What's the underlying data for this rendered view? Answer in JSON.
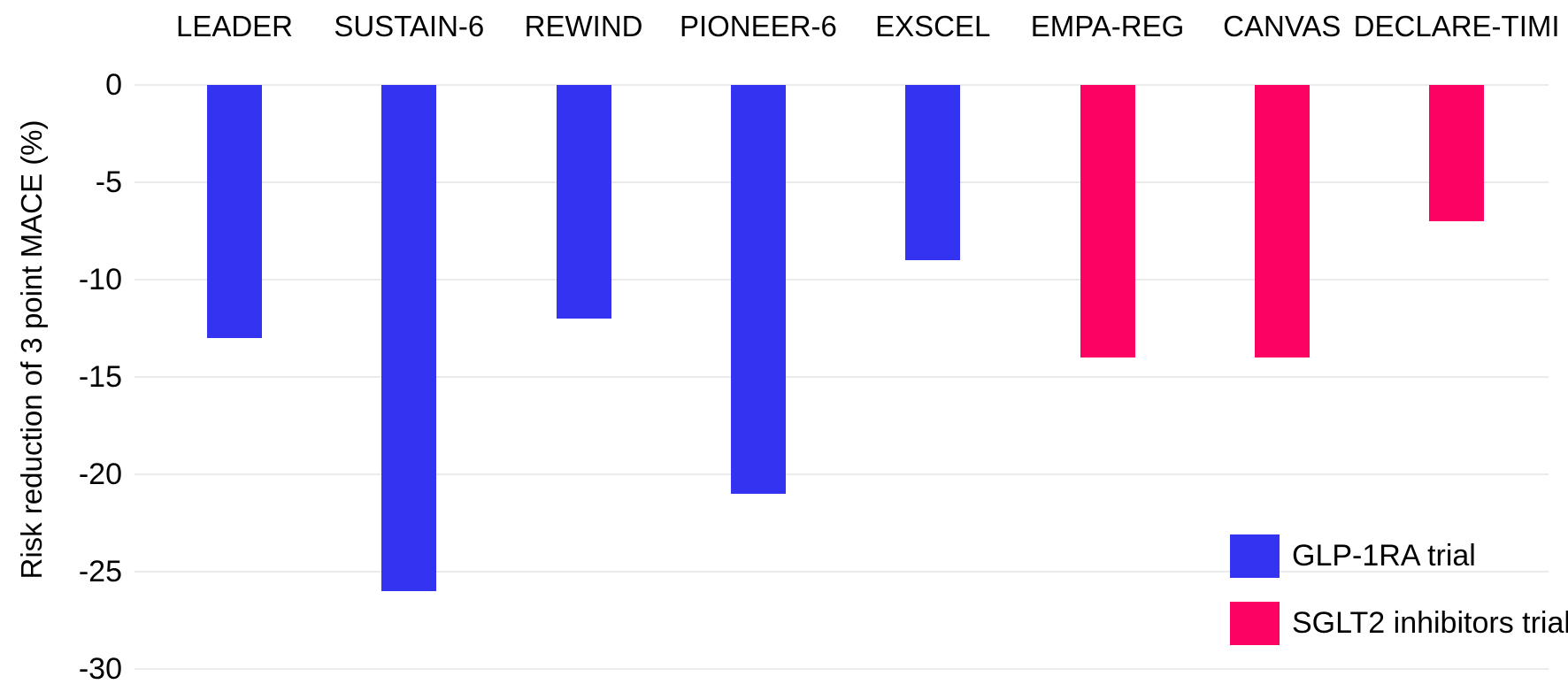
{
  "chart_data": {
    "type": "bar",
    "title": "",
    "categories": [
      "LEADER",
      "SUSTAIN-6",
      "REWIND",
      "PIONEER-6",
      "EXSCEL",
      "EMPA-REG",
      "CANVAS",
      "DECLARE-TIMI"
    ],
    "series": [
      {
        "name": "GLP-1RA trial",
        "color": "#3533F2",
        "values": [
          -13,
          -26,
          -12,
          -21,
          -9,
          null,
          null,
          null
        ]
      },
      {
        "name": "SGLT2 inhibitors trial",
        "color": "#FB0263",
        "values": [
          null,
          null,
          null,
          null,
          null,
          -14,
          -14,
          -7
        ]
      }
    ],
    "xlabel": "",
    "ylabel": "Risk reduction of 3 point MACE (%)",
    "ylim": [
      -30,
      0
    ],
    "yticks": [
      0,
      -5,
      -10,
      -15,
      -20,
      -25,
      -30
    ],
    "grid": true,
    "legend_position": "bottom-right"
  },
  "legend": {
    "items": [
      {
        "label": "GLP-1RA trial",
        "color": "#3533F2"
      },
      {
        "label": "SGLT2 inhibitors trial",
        "color": "#FB0263"
      }
    ]
  },
  "colors": {
    "glp1ra_blue": "#3533F2",
    "sglt2_pink": "#FB0263",
    "gridline": "#EBEBEB",
    "text": "#000000",
    "background": "#FFFFFF"
  }
}
